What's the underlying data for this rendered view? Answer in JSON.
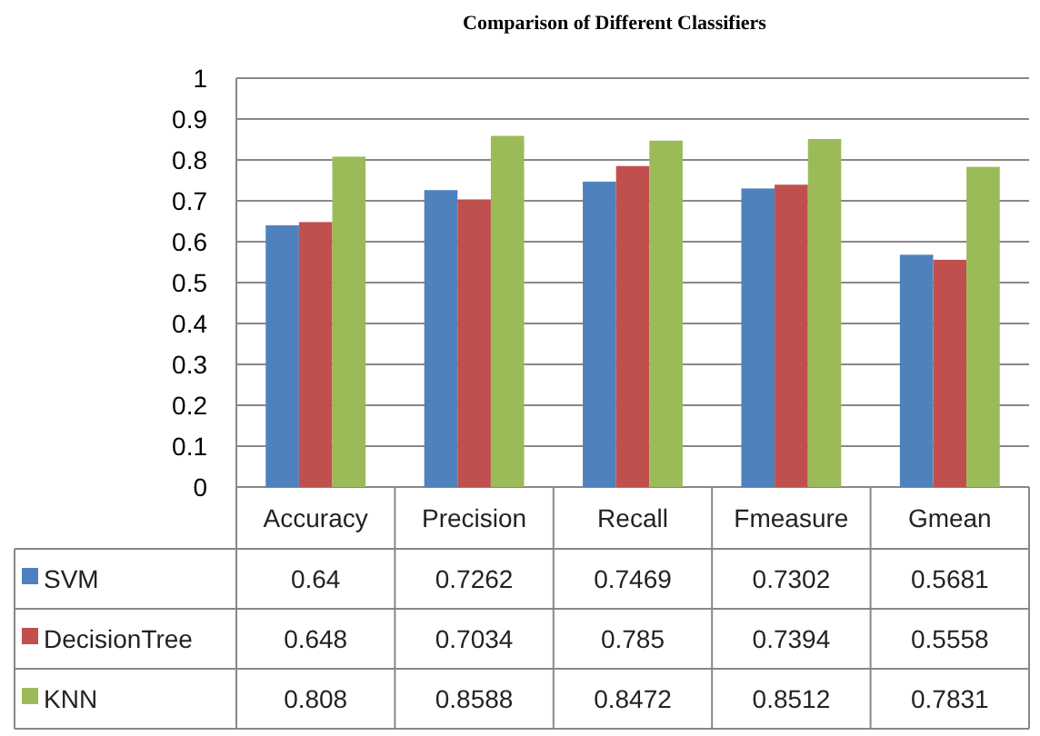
{
  "chart_data": {
    "type": "bar",
    "title": "Comparison of Different Classifiers",
    "categories": [
      "Accuracy",
      "Precision",
      "Recall",
      "Fmeasure",
      "Gmean"
    ],
    "series": [
      {
        "name": "SVM",
        "color": "#4f81bd",
        "values": [
          0.64,
          0.7262,
          0.7469,
          0.7302,
          0.5681
        ]
      },
      {
        "name": "DecisionTree",
        "color": "#c0504d",
        "values": [
          0.648,
          0.7034,
          0.785,
          0.7394,
          0.5558
        ]
      },
      {
        "name": "KNN",
        "color": "#9bbb59",
        "values": [
          0.808,
          0.8588,
          0.8472,
          0.8512,
          0.7831
        ]
      }
    ],
    "ylim": [
      0,
      1
    ],
    "yticks": [
      0,
      0.1,
      0.2,
      0.3,
      0.4,
      0.5,
      0.6,
      0.7,
      0.8,
      0.9,
      1
    ],
    "grid": "y",
    "legend": "bottom",
    "data_labels": true
  }
}
